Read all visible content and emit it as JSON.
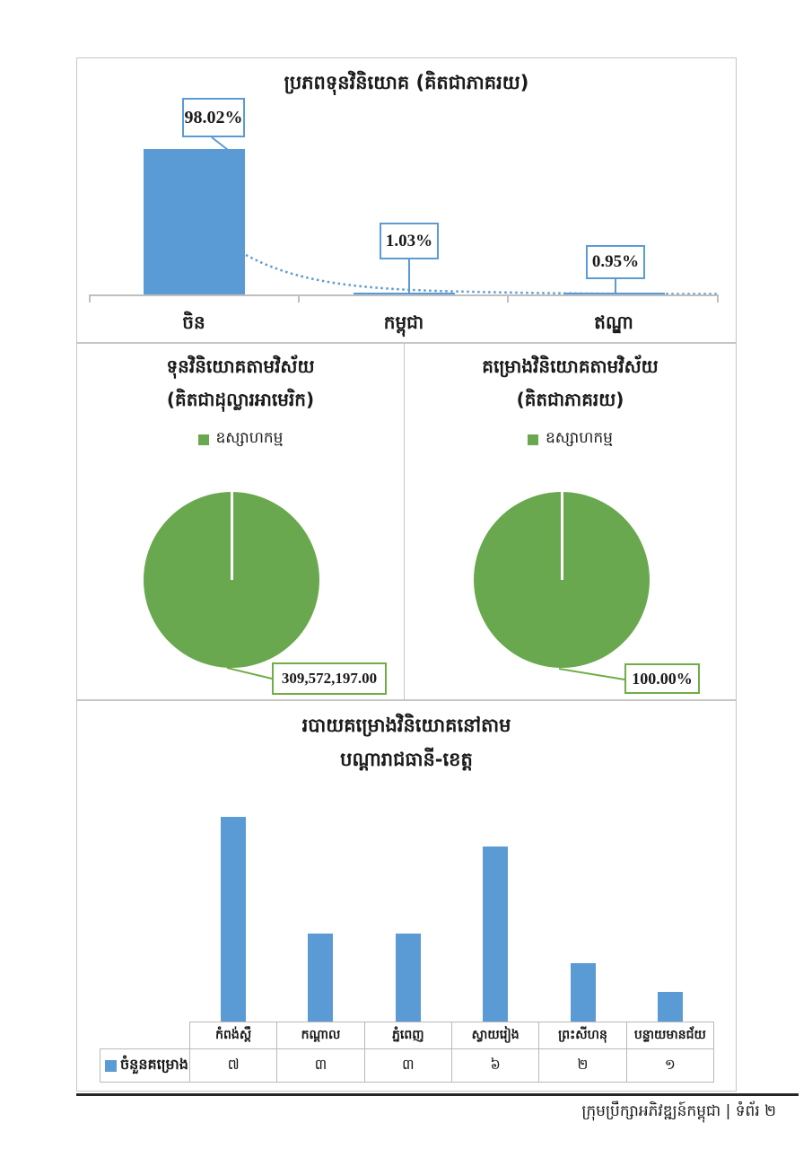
{
  "footer": {
    "text": "ក្រុមប្រឹក្សាអភិវឌ្ឍន៍កម្ពុជា | ទំព័រ ២"
  },
  "colors": {
    "bar_blue": "#5B9BD5",
    "pie_green": "#6AA84F",
    "pie_green_border": "#70AD47",
    "panel_border": "#C6C6C6",
    "axis_gray": "#BFBFBF",
    "table_border": "#B9B9B9",
    "footer_line": "#262626",
    "text_black": "#1A1A1A"
  },
  "chart_data": [
    {
      "type": "bar",
      "title": "ប្រភពទុនវិនិយោគ (គិតជាភាគរយ)",
      "categories": [
        "ចិន",
        "កម្ពុជា",
        "ឥណ្ឌា"
      ],
      "values": [
        98.02,
        1.03,
        0.95
      ],
      "data_labels": [
        "98.02%",
        "1.03%",
        "0.95%"
      ],
      "unit": "percent",
      "ylim": [
        0,
        100
      ],
      "grid": false,
      "bar_color": "#5B9BD5",
      "legend_position": "none",
      "annotation_style": "callout-boxes-with-dotted-trend-line"
    },
    {
      "type": "pie",
      "title": "ទុនវិនិយោគតាមវិស័យ",
      "subtitle": "(គិតជាដុល្លារអាមេរិក)",
      "legend": [
        "ឧស្សាហកម្ម"
      ],
      "legend_position": "top",
      "slices": [
        {
          "label": "ឧស្សាហកម្ម",
          "value": 309572197.0,
          "data_label": "309,572,197.00",
          "color": "#6AA84F"
        }
      ]
    },
    {
      "type": "pie",
      "title": "គម្រោងវិនិយោគតាមវិស័យ",
      "subtitle": "(គិតជាភាគរយ)",
      "legend": [
        "ឧស្សាហកម្ម"
      ],
      "legend_position": "top",
      "slices": [
        {
          "label": "ឧស្សាហកម្ម",
          "value": 100.0,
          "data_label": "100.00%",
          "color": "#6AA84F"
        }
      ]
    },
    {
      "type": "bar",
      "title": "របាយគម្រោងវិនិយោគនៅតាម បណ្ដារាជធានី-ខេត្ត",
      "title_lines": [
        "របាយគម្រោងវិនិយោគនៅតាម",
        "បណ្ដារាជធានី-ខេត្ត"
      ],
      "categories": [
        "កំពង់ស្ពឺ",
        "កណ្ដាល",
        "ភ្នំពេញ",
        "ស្វាយរៀង",
        "ព្រះសីហនុ",
        "បន្ទាយមានជ័យ"
      ],
      "series": [
        {
          "name": "ចំនួនគម្រោង",
          "values": [
            7,
            3,
            3,
            6,
            2,
            1
          ],
          "value_labels": [
            "៧",
            "៣",
            "៣",
            "៦",
            "២",
            "១"
          ]
        }
      ],
      "ylim": [
        0,
        7
      ],
      "grid": false,
      "bar_color": "#5B9BD5",
      "data_table_shown": true,
      "legend_position": "table-left"
    }
  ]
}
